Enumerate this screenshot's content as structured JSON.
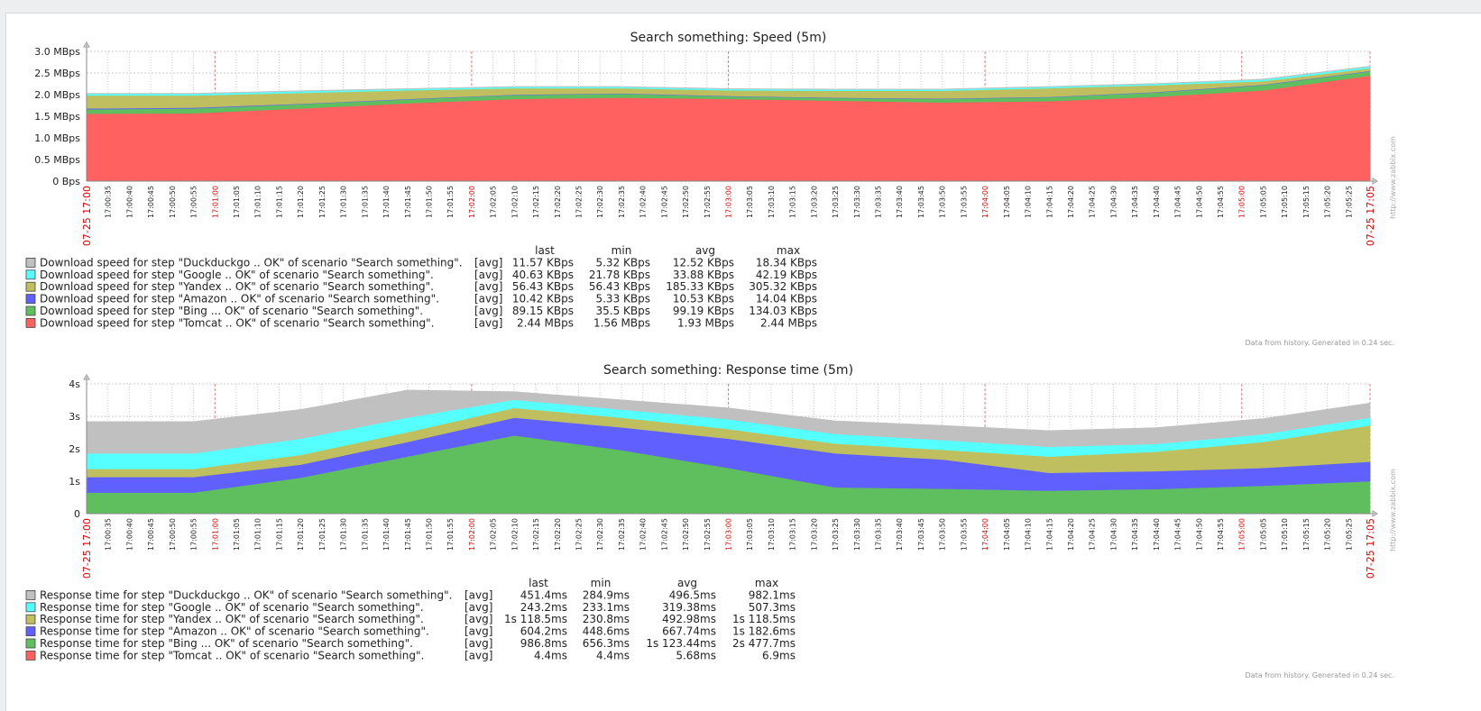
{
  "page": {
    "footer_note": "Data from history. Generated in 0.24 sec.",
    "watermark": "http://www.zabbix.com"
  },
  "legend_headers": {
    "last": "last",
    "min": "min",
    "avg": "avg",
    "max": "max"
  },
  "colors": {
    "grid": "#cccccc",
    "red_label": "#dd0000",
    "Duckduckgo": "#c0c0c0",
    "Google": "#55ffff",
    "Yandex": "#bfbf5f",
    "Amazon": "#6060ff",
    "Bing": "#5fbf5f",
    "Tomcat": "#ff6060"
  },
  "chart_data": [
    {
      "type": "area",
      "stacked": true,
      "title": "Search something: Speed (5m)",
      "x_ticks": [
        "07-25 17:00",
        "17:00:35",
        "17:00:40",
        "17:00:45",
        "17:00:50",
        "17:00:55",
        "17:01:00",
        "17:01:05",
        "17:01:10",
        "17:01:15",
        "17:01:20",
        "17:01:25",
        "17:01:30",
        "17:01:35",
        "17:01:40",
        "17:01:45",
        "17:01:50",
        "17:01:55",
        "17:02:00",
        "17:02:05",
        "17:02:10",
        "17:02:15",
        "17:02:20",
        "17:02:25",
        "17:02:30",
        "17:02:35",
        "17:02:40",
        "17:02:45",
        "17:02:50",
        "17:02:55",
        "17:03:00",
        "17:03:05",
        "17:03:10",
        "17:03:15",
        "17:03:20",
        "17:03:25",
        "17:03:30",
        "17:03:35",
        "17:03:40",
        "17:03:45",
        "17:03:50",
        "17:03:55",
        "17:04:00",
        "17:04:05",
        "17:04:10",
        "17:04:15",
        "17:04:20",
        "17:04:25",
        "17:04:30",
        "17:04:35",
        "17:04:40",
        "17:04:45",
        "17:04:50",
        "17:04:55",
        "17:05:00",
        "17:05:05",
        "17:05:10",
        "17:05:15",
        "17:05:20",
        "17:05:25",
        "07-25 17:05"
      ],
      "red_ticks": [
        "07-25 17:00",
        "17:01:00",
        "17:02:00",
        "17:03:00",
        "17:04:00",
        "17:05:00",
        "07-25 17:05"
      ],
      "y_ticks": [
        "0 Bps",
        "0.5 MBps",
        "1.0 MBps",
        "1.5 MBps",
        "2.0 MBps",
        "2.5 MBps",
        "3.0 MBps"
      ],
      "ylim": [
        0,
        3.0
      ],
      "y_unit": "MBps",
      "x": [
        0,
        1,
        2,
        3,
        4,
        5,
        6,
        7,
        8,
        9,
        10,
        11,
        12
      ],
      "series": [
        {
          "key": "Tomcat",
          "values": [
            1.56,
            1.57,
            1.68,
            1.8,
            1.9,
            1.93,
            1.9,
            1.86,
            1.82,
            1.85,
            1.95,
            2.1,
            2.44
          ]
        },
        {
          "key": "Bing",
          "values": [
            0.1,
            0.11,
            0.1,
            0.09,
            0.09,
            0.09,
            0.06,
            0.06,
            0.08,
            0.09,
            0.1,
            0.12,
            0.1
          ]
        },
        {
          "key": "Amazon",
          "values": [
            0.02,
            0.02,
            0.01,
            0.01,
            0.01,
            0.01,
            0.01,
            0.01,
            0.01,
            0.01,
            0.01,
            0.01,
            0.01
          ]
        },
        {
          "key": "Yandex",
          "values": [
            0.3,
            0.28,
            0.25,
            0.2,
            0.15,
            0.12,
            0.13,
            0.16,
            0.18,
            0.2,
            0.16,
            0.08,
            0.06
          ]
        },
        {
          "key": "Google",
          "values": [
            0.04,
            0.04,
            0.04,
            0.03,
            0.03,
            0.03,
            0.03,
            0.03,
            0.03,
            0.03,
            0.03,
            0.04,
            0.04
          ]
        },
        {
          "key": "Duckduckgo",
          "values": [
            0.01,
            0.01,
            0.01,
            0.01,
            0.01,
            0.01,
            0.01,
            0.01,
            0.01,
            0.01,
            0.01,
            0.01,
            0.01
          ]
        }
      ],
      "legend": [
        {
          "key": "Duckduckgo",
          "label": "Download speed for step \"Duckduckgo .. OK\" of scenario \"Search something\".",
          "func": "[avg]",
          "last": "11.57 KBps",
          "min": "5.32 KBps",
          "avg": "12.52 KBps",
          "max": "18.34 KBps"
        },
        {
          "key": "Google",
          "label": "Download speed for step \"Google .. OK\" of scenario \"Search something\".",
          "func": "[avg]",
          "last": "40.63 KBps",
          "min": "21.78 KBps",
          "avg": "33.88 KBps",
          "max": "42.19 KBps"
        },
        {
          "key": "Yandex",
          "label": "Download speed for step \"Yandex .. OK\" of scenario \"Search something\".",
          "func": "[avg]",
          "last": "56.43 KBps",
          "min": "56.43 KBps",
          "avg": "185.33 KBps",
          "max": "305.32 KBps"
        },
        {
          "key": "Amazon",
          "label": "Download speed for step \"Amazon .. OK\" of scenario \"Search something\".",
          "func": "[avg]",
          "last": "10.42 KBps",
          "min": "5.33 KBps",
          "avg": "10.53 KBps",
          "max": "14.04 KBps"
        },
        {
          "key": "Bing",
          "label": "Download speed for step \"Bing ... OK\" of scenario \"Search something\".",
          "func": "[avg]",
          "last": "89.15 KBps",
          "min": "35.5 KBps",
          "avg": "99.19 KBps",
          "max": "134.03 KBps"
        },
        {
          "key": "Tomcat",
          "label": "Download speed for step \"Tomcat .. OK\" of scenario \"Search something\".",
          "func": "[avg]",
          "last": "2.44 MBps",
          "min": "1.56 MBps",
          "avg": "1.93 MBps",
          "max": "2.44 MBps"
        }
      ]
    },
    {
      "type": "area",
      "stacked": true,
      "title": "Search something: Response time (5m)",
      "x_ticks": [
        "07-25 17:00",
        "17:00:35",
        "17:00:40",
        "17:00:45",
        "17:00:50",
        "17:00:55",
        "17:01:00",
        "17:01:05",
        "17:01:10",
        "17:01:15",
        "17:01:20",
        "17:01:25",
        "17:01:30",
        "17:01:35",
        "17:01:40",
        "17:01:45",
        "17:01:50",
        "17:01:55",
        "17:02:00",
        "17:02:05",
        "17:02:10",
        "17:02:15",
        "17:02:20",
        "17:02:25",
        "17:02:30",
        "17:02:35",
        "17:02:40",
        "17:02:45",
        "17:02:50",
        "17:02:55",
        "17:03:00",
        "17:03:05",
        "17:03:10",
        "17:03:15",
        "17:03:20",
        "17:03:25",
        "17:03:30",
        "17:03:35",
        "17:03:40",
        "17:03:45",
        "17:03:50",
        "17:03:55",
        "17:04:00",
        "17:04:05",
        "17:04:10",
        "17:04:15",
        "17:04:20",
        "17:04:25",
        "17:04:30",
        "17:04:35",
        "17:04:40",
        "17:04:45",
        "17:04:50",
        "17:04:55",
        "17:05:00",
        "17:05:05",
        "17:05:10",
        "17:05:15",
        "17:05:20",
        "17:05:25",
        "07-25 17:05"
      ],
      "red_ticks": [
        "07-25 17:00",
        "17:01:00",
        "17:02:00",
        "17:03:00",
        "17:04:00",
        "17:05:00",
        "07-25 17:05"
      ],
      "y_ticks": [
        "0",
        "1s",
        "2s",
        "3s",
        "4s"
      ],
      "ylim": [
        0,
        4
      ],
      "y_unit": "s",
      "x": [
        0,
        1,
        2,
        3,
        4,
        5,
        6,
        7,
        8,
        9,
        10,
        11,
        12
      ],
      "series": [
        {
          "key": "Tomcat",
          "values": [
            0.01,
            0.01,
            0.01,
            0.01,
            0.01,
            0.01,
            0.01,
            0.01,
            0.01,
            0.01,
            0.01,
            0.01,
            0.01
          ]
        },
        {
          "key": "Bing",
          "values": [
            0.64,
            0.64,
            1.1,
            1.75,
            2.4,
            1.95,
            1.4,
            0.8,
            0.76,
            0.7,
            0.75,
            0.85,
            0.99
          ]
        },
        {
          "key": "Amazon",
          "values": [
            0.48,
            0.48,
            0.4,
            0.45,
            0.55,
            0.7,
            0.9,
            1.05,
            0.9,
            0.55,
            0.55,
            0.55,
            0.6
          ]
        },
        {
          "key": "Yandex",
          "values": [
            0.25,
            0.25,
            0.3,
            0.3,
            0.3,
            0.3,
            0.3,
            0.3,
            0.3,
            0.5,
            0.6,
            0.8,
            1.12
          ]
        },
        {
          "key": "Google",
          "values": [
            0.48,
            0.48,
            0.5,
            0.45,
            0.25,
            0.25,
            0.3,
            0.3,
            0.3,
            0.3,
            0.24,
            0.24,
            0.24
          ]
        },
        {
          "key": "Duckduckgo",
          "values": [
            0.98,
            0.98,
            0.9,
            0.85,
            0.25,
            0.3,
            0.35,
            0.4,
            0.45,
            0.5,
            0.5,
            0.48,
            0.45
          ]
        }
      ],
      "legend": [
        {
          "key": "Duckduckgo",
          "label": "Response time for step \"Duckduckgo .. OK\" of scenario \"Search something\".",
          "func": "[avg]",
          "last": "451.4ms",
          "min": "284.9ms",
          "avg": "496.5ms",
          "max": "982.1ms"
        },
        {
          "key": "Google",
          "label": "Response time for step \"Google .. OK\" of scenario \"Search something\".",
          "func": "[avg]",
          "last": "243.2ms",
          "min": "233.1ms",
          "avg": "319.38ms",
          "max": "507.3ms"
        },
        {
          "key": "Yandex",
          "label": "Response time for step \"Yandex .. OK\" of scenario \"Search something\".",
          "func": "[avg]",
          "last": "1s 118.5ms",
          "min": "230.8ms",
          "avg": "492.98ms",
          "max": "1s 118.5ms"
        },
        {
          "key": "Amazon",
          "label": "Response time for step \"Amazon .. OK\" of scenario \"Search something\".",
          "func": "[avg]",
          "last": "604.2ms",
          "min": "448.6ms",
          "avg": "667.74ms",
          "max": "1s 182.6ms"
        },
        {
          "key": "Bing",
          "label": "Response time for step \"Bing ... OK\" of scenario \"Search something\".",
          "func": "[avg]",
          "last": "986.8ms",
          "min": "656.3ms",
          "avg": "1s 123.44ms",
          "max": "2s 477.7ms"
        },
        {
          "key": "Tomcat",
          "label": "Response time for step \"Tomcat .. OK\" of scenario \"Search something\".",
          "func": "[avg]",
          "last": "4.4ms",
          "min": "4.4ms",
          "avg": "5.68ms",
          "max": "6.9ms"
        }
      ]
    }
  ]
}
